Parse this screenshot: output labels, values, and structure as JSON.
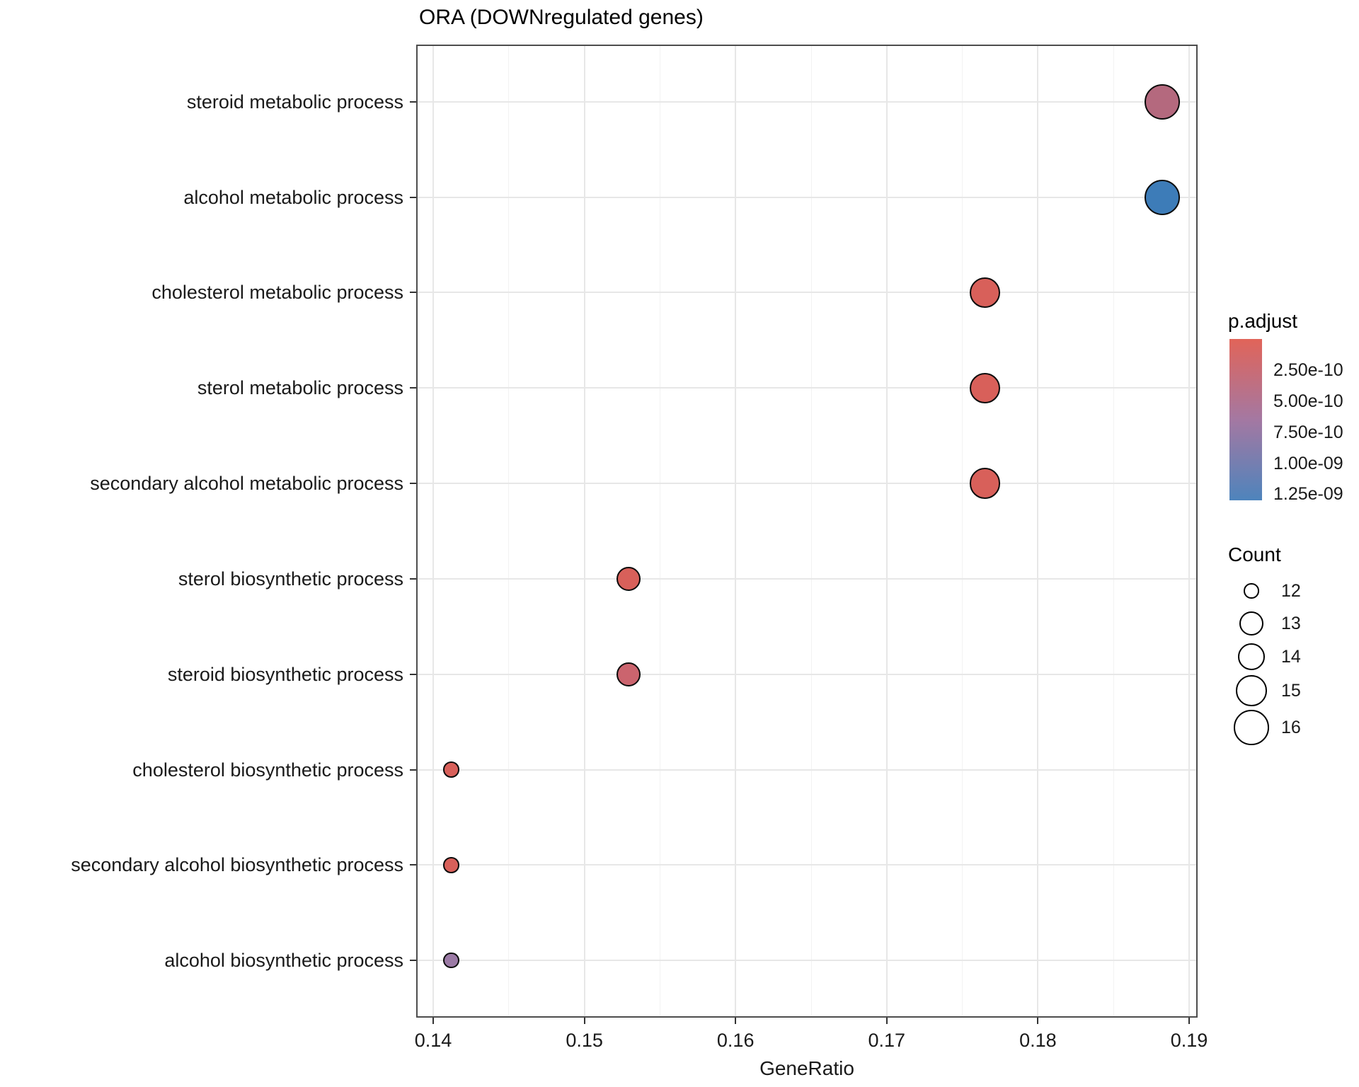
{
  "title": "ORA (DOWNregulated genes)",
  "chart_data": {
    "type": "scatter",
    "title": "ORA (DOWNregulated genes)",
    "xlabel": "GeneRatio",
    "ylabel": "",
    "x_tick_labels": [
      "0.14",
      "0.15",
      "0.16",
      "0.17",
      "0.18",
      "0.19"
    ],
    "x_tick_values": [
      0.14,
      0.15,
      0.16,
      0.17,
      0.18,
      0.19
    ],
    "x_minor_tick_values": [
      0.145,
      0.155,
      0.165,
      0.175,
      0.185
    ],
    "x_range": [
      0.1389,
      0.1906
    ],
    "grid": "major-and-minor",
    "categories": [
      "steroid metabolic process",
      "alcohol metabolic process",
      "cholesterol metabolic process",
      "sterol metabolic process",
      "secondary alcohol metabolic process",
      "sterol biosynthetic process",
      "steroid biosynthetic process",
      "cholesterol biosynthetic process",
      "secondary alcohol biosynthetic process",
      "alcohol biosynthetic process"
    ],
    "points": [
      {
        "category": "steroid metabolic process",
        "gene_ratio": 0.1882,
        "count": 16,
        "p_adjust_approx": "5.0e-10",
        "color": "#b4697e"
      },
      {
        "category": "alcohol metabolic process",
        "gene_ratio": 0.1882,
        "count": 16,
        "p_adjust_approx": "1.3e-09",
        "color": "#3d7cb8"
      },
      {
        "category": "cholesterol metabolic process",
        "gene_ratio": 0.1765,
        "count": 15,
        "p_adjust_approx": "1.0e-10",
        "color": "#d8605a"
      },
      {
        "category": "sterol metabolic process",
        "gene_ratio": 0.1765,
        "count": 15,
        "p_adjust_approx": "1.0e-10",
        "color": "#d8605a"
      },
      {
        "category": "secondary alcohol metabolic process",
        "gene_ratio": 0.1765,
        "count": 15,
        "p_adjust_approx": "1.0e-10",
        "color": "#d8605a"
      },
      {
        "category": "sterol biosynthetic process",
        "gene_ratio": 0.1529,
        "count": 13,
        "p_adjust_approx": "1.5e-10",
        "color": "#d8605a"
      },
      {
        "category": "steroid biosynthetic process",
        "gene_ratio": 0.1529,
        "count": 13,
        "p_adjust_approx": "2.5e-10",
        "color": "#cb646e"
      },
      {
        "category": "cholesterol biosynthetic process",
        "gene_ratio": 0.1412,
        "count": 12,
        "p_adjust_approx": "1.5e-10",
        "color": "#d8605a"
      },
      {
        "category": "secondary alcohol biosynthetic process",
        "gene_ratio": 0.1412,
        "count": 12,
        "p_adjust_approx": "1.5e-10",
        "color": "#d8605a"
      },
      {
        "category": "alcohol biosynthetic process",
        "gene_ratio": 0.1412,
        "count": 12,
        "p_adjust_approx": "7.0e-10",
        "color": "#9b7aa5"
      }
    ],
    "legend_p_adjust": {
      "title": "p.adjust",
      "tick_labels": [
        "2.50e-10",
        "5.00e-10",
        "7.50e-10",
        "1.00e-09",
        "1.25e-09"
      ],
      "gradient_colors": [
        "#e16459",
        "#a478a2",
        "#4e84bc"
      ],
      "orientation": "vertical",
      "position": "right"
    },
    "legend_count": {
      "title": "Count",
      "items": [
        {
          "count": "12",
          "radius": 10.7
        },
        {
          "count": "13",
          "radius": 17.0
        },
        {
          "count": "14",
          "radius": 19.3
        },
        {
          "count": "15",
          "radius": 21.7
        },
        {
          "count": "16",
          "radius": 24.8
        }
      ]
    }
  }
}
